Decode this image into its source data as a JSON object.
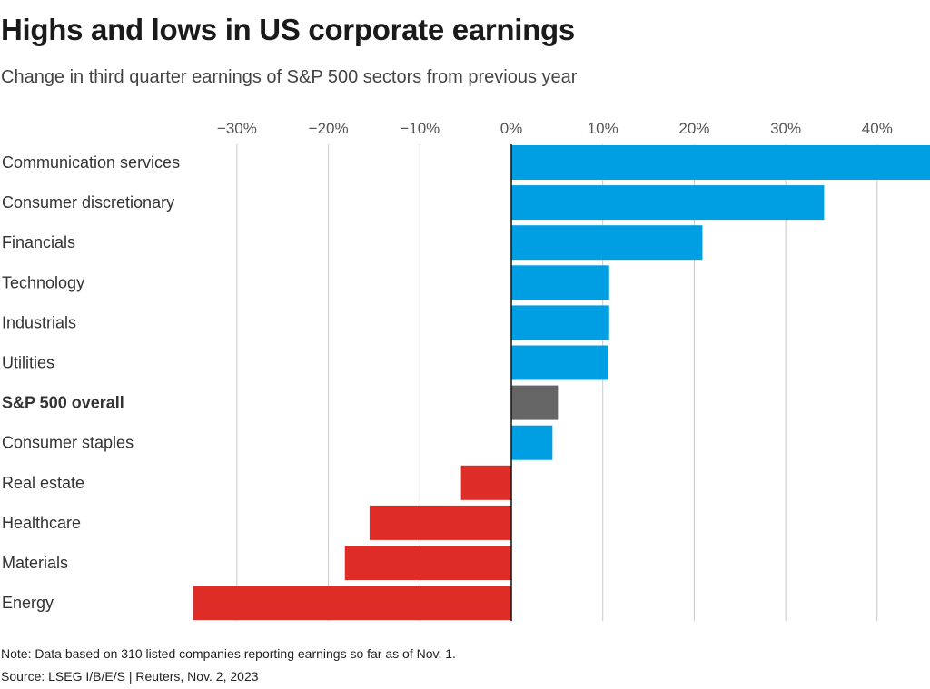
{
  "title": "Highs and lows in US corporate earnings",
  "subtitle": "Change in third quarter earnings of S&P 500 sectors from previous year",
  "note": "Note: Data based on 310 listed companies reporting earnings so far as of Nov. 1.",
  "source": "Source: LSEG I/B/E/S | Reuters, Nov. 2, 2023",
  "colors": {
    "positive": "#009fe3",
    "negative": "#de2d26",
    "overall": "#666666",
    "grid": "#c8c8c8"
  },
  "chart_data": {
    "type": "bar",
    "orientation": "horizontal",
    "title": "Highs and lows in US corporate earnings",
    "xlabel": "",
    "ylabel": "",
    "xlim": [
      -35,
      46
    ],
    "ticks": [
      -30,
      -20,
      -10,
      0,
      10,
      20,
      30,
      40
    ],
    "tick_labels": [
      "−30%",
      "−20%",
      "−10%",
      "0%",
      "10%",
      "20%",
      "30%",
      "40%"
    ],
    "categories": [
      "Communication services",
      "Consumer discretionary",
      "Financials",
      "Technology",
      "Industrials",
      "Utilities",
      "S&P 500 overall",
      "Consumer staples",
      "Real estate",
      "Healthcare",
      "Materials",
      "Energy"
    ],
    "values": [
      45.8,
      34.2,
      20.9,
      10.7,
      10.7,
      10.6,
      5.1,
      4.5,
      -5.5,
      -15.5,
      -18.2,
      -34.8
    ],
    "highlight": "S&P 500 overall",
    "grid": true
  }
}
